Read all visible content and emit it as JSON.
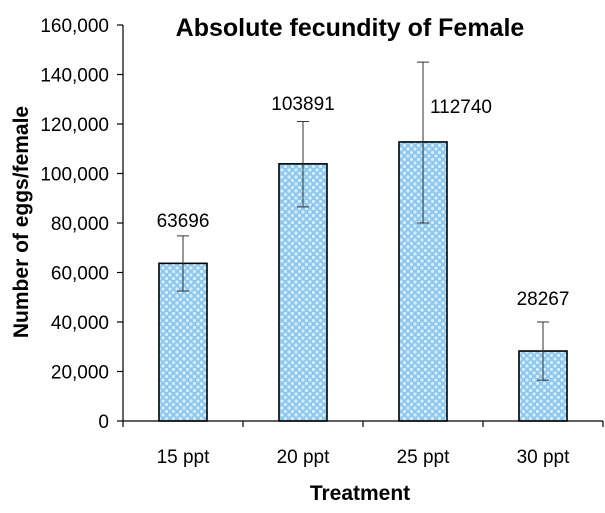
{
  "chart_data": {
    "type": "bar",
    "title": "Absolute fecundity of Female",
    "xlabel": "Treatment",
    "ylabel": "Number of eggs/female",
    "categories": [
      "15 ppt",
      "20 ppt",
      "25 ppt",
      "30 ppt"
    ],
    "values": [
      63696,
      103891,
      112740,
      28267
    ],
    "data_labels": [
      "63696",
      "103891",
      "112740",
      "28267"
    ],
    "error_low": [
      52500,
      86500,
      80000,
      16500
    ],
    "error_high": [
      74800,
      121000,
      145000,
      40000
    ],
    "ylim": [
      0,
      160000
    ],
    "yticks": [
      0,
      20000,
      40000,
      60000,
      80000,
      100000,
      120000,
      140000,
      160000
    ],
    "ytick_labels": [
      "0",
      "20,000",
      "40,000",
      "60,000",
      "80,000",
      "100,000",
      "120,000",
      "140,000",
      "160,000"
    ],
    "grid": false,
    "legend": "none",
    "bar_fill": "#8ec8ef",
    "bar_dots": "#d8eefb",
    "bar_stroke": "#000000"
  }
}
